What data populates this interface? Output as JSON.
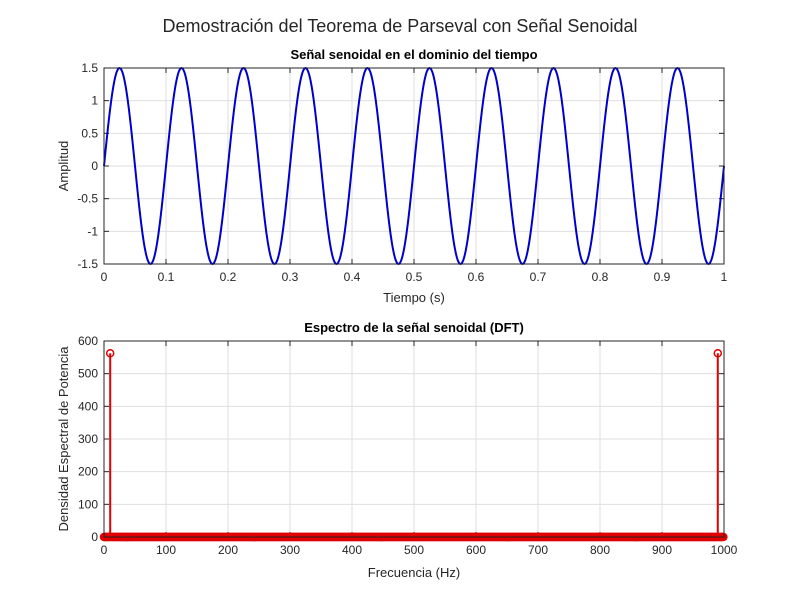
{
  "figure": {
    "suptitle": "Demostración del Teorema de Parseval con Señal Senoidal"
  },
  "chart_data": [
    {
      "type": "line",
      "title": "Señal senoidal en el dominio del tiempo",
      "xlabel": "Tiempo (s)",
      "ylabel": "Amplitud",
      "xlim": [
        0,
        1
      ],
      "ylim": [
        -1.5,
        1.5
      ],
      "xticks": [
        "0",
        "0.1",
        "0.2",
        "0.3",
        "0.4",
        "0.5",
        "0.6",
        "0.7",
        "0.8",
        "0.9",
        "1"
      ],
      "yticks": [
        "-1.5",
        "-1",
        "-0.5",
        "0",
        "0.5",
        "1",
        "1.5"
      ],
      "grid": true,
      "series": [
        {
          "amplitude": 1.5,
          "frequency_hz": 10,
          "phase": 0,
          "x_range": [
            0,
            1
          ],
          "color": "#0000cc"
        }
      ]
    },
    {
      "type": "stem",
      "title": "Espectro de la señal senoidal (DFT)",
      "xlabel": "Frecuencia (Hz)",
      "ylabel": "Densidad Espectral de Potencia",
      "xlim": [
        0,
        1000
      ],
      "ylim": [
        0,
        600
      ],
      "xticks": [
        "0",
        "100",
        "200",
        "300",
        "400",
        "500",
        "600",
        "700",
        "800",
        "900",
        "1000"
      ],
      "yticks": [
        "0",
        "100",
        "200",
        "300",
        "400",
        "500",
        "600"
      ],
      "grid": true,
      "series": [
        {
          "frequency_range": [
            0,
            999
          ],
          "baseline_value": 0,
          "peaks": [
            {
              "x": 10,
              "y": 562.5
            },
            {
              "x": 990,
              "y": 562.5
            }
          ],
          "color": "#e00000"
        }
      ]
    }
  ]
}
